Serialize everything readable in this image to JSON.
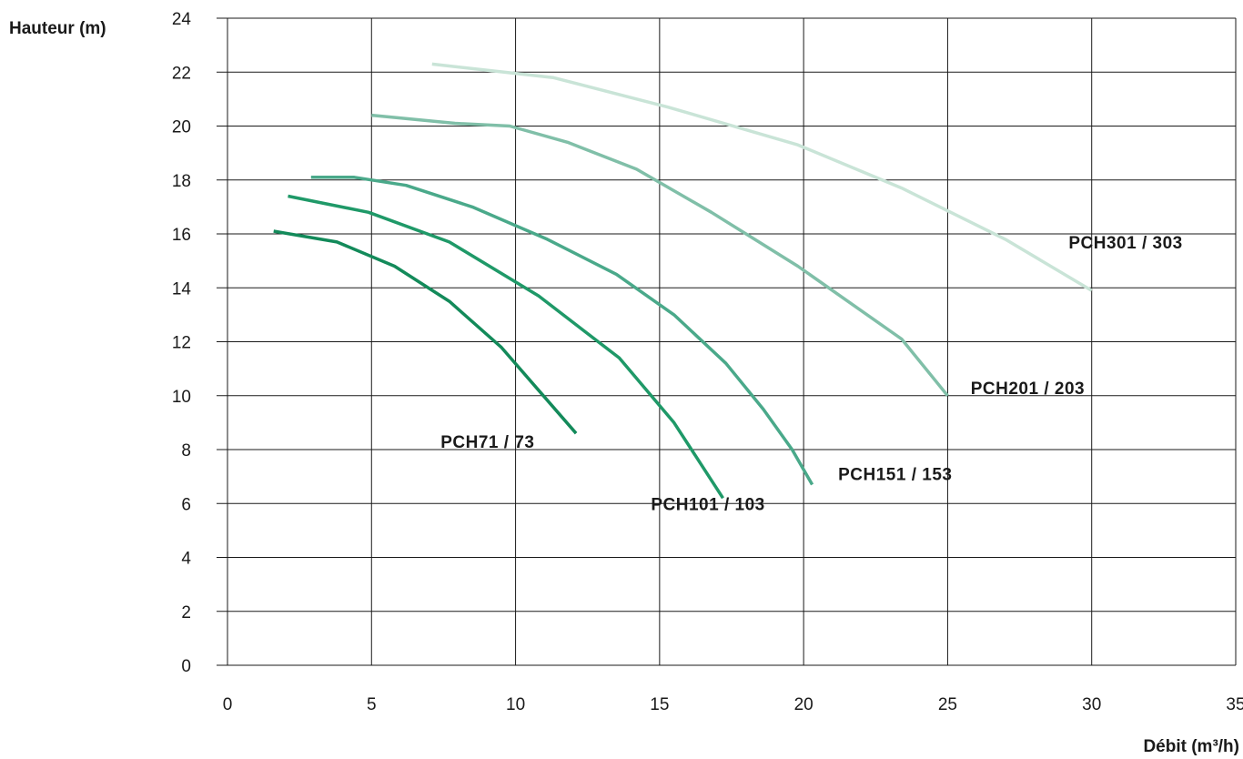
{
  "chart_data": {
    "type": "line",
    "ylabel": "Hauteur (m)",
    "xlabel": "Débit (m³/h)",
    "xlim": [
      0,
      35
    ],
    "ylim": [
      0,
      24
    ],
    "x_ticks": [
      "0",
      "5",
      "10",
      "15",
      "20",
      "25",
      "30",
      "35"
    ],
    "y_ticks": [
      "0",
      "2",
      "4",
      "6",
      "8",
      "10",
      "12",
      "14",
      "16",
      "18",
      "20",
      "22",
      "24"
    ],
    "grid": true,
    "series": [
      {
        "name": "PCH71 / 73",
        "color": "#138a5a",
        "points": [
          [
            1.6,
            16.1
          ],
          [
            3.8,
            15.7
          ],
          [
            5.8,
            14.8
          ],
          [
            7.7,
            13.5
          ],
          [
            9.5,
            11.8
          ],
          [
            10.8,
            10.2
          ],
          [
            12.1,
            8.6
          ]
        ]
      },
      {
        "name": "PCH101 / 103",
        "color": "#1f9968",
        "points": [
          [
            2.1,
            17.4
          ],
          [
            4.9,
            16.8
          ],
          [
            7.7,
            15.7
          ],
          [
            10.8,
            13.7
          ],
          [
            13.6,
            11.4
          ],
          [
            15.5,
            9.0
          ],
          [
            17.2,
            6.2
          ]
        ]
      },
      {
        "name": "PCH151 / 153",
        "color": "#4aa98a",
        "points": [
          [
            2.9,
            18.1
          ],
          [
            4.4,
            18.1
          ],
          [
            6.2,
            17.8
          ],
          [
            8.5,
            17.0
          ],
          [
            11.1,
            15.8
          ],
          [
            13.5,
            14.5
          ],
          [
            15.5,
            13.0
          ],
          [
            17.3,
            11.2
          ],
          [
            18.6,
            9.5
          ],
          [
            19.6,
            8.0
          ],
          [
            20.3,
            6.7
          ]
        ]
      },
      {
        "name": "PCH201 / 203",
        "color": "#80bfa8",
        "points": [
          [
            5.0,
            20.4
          ],
          [
            7.9,
            20.1
          ],
          [
            9.8,
            20.0
          ],
          [
            11.8,
            19.4
          ],
          [
            14.2,
            18.4
          ],
          [
            16.8,
            16.8
          ],
          [
            19.8,
            14.8
          ],
          [
            23.4,
            12.1
          ],
          [
            25.0,
            10.0
          ]
        ]
      },
      {
        "name": "PCH301 / 303",
        "color": "#c9e4d7",
        "points": [
          [
            7.1,
            22.3
          ],
          [
            11.3,
            21.8
          ],
          [
            15.3,
            20.7
          ],
          [
            19.8,
            19.3
          ],
          [
            23.4,
            17.7
          ],
          [
            27.0,
            15.8
          ],
          [
            30.0,
            13.9
          ]
        ]
      }
    ]
  }
}
